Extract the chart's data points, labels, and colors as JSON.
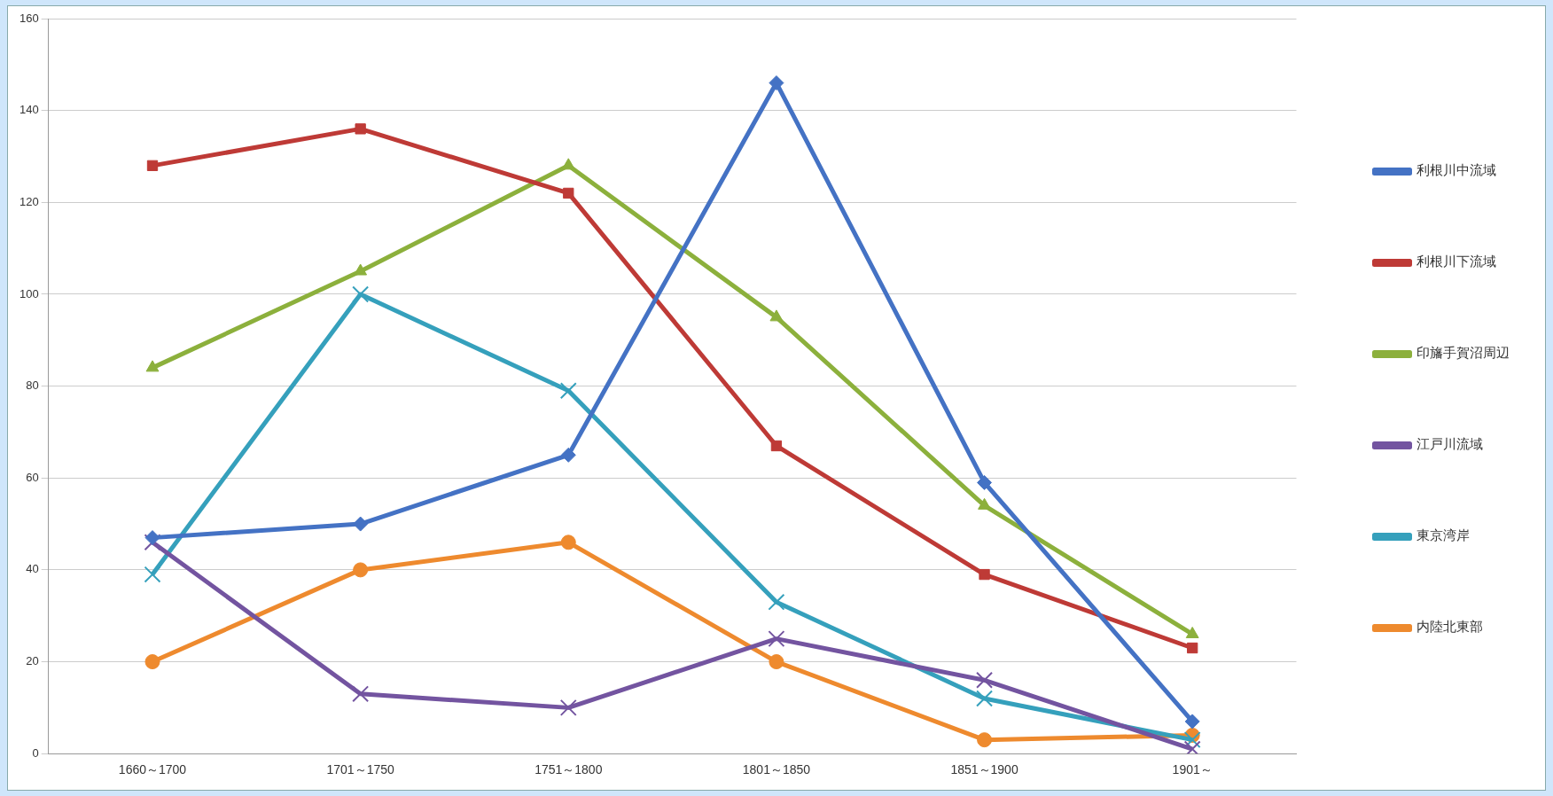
{
  "chart_data": {
    "type": "line",
    "categories": [
      "1660～1700",
      "1701～1750",
      "1751～1800",
      "1801～1850",
      "1851～1900",
      "1901～"
    ],
    "ylim": [
      0,
      160
    ],
    "yticks": [
      0,
      20,
      40,
      60,
      80,
      100,
      120,
      140,
      160
    ],
    "grid": "y",
    "legend": "right",
    "line_style": "solid",
    "series": [
      {
        "name": "利根川中流域",
        "color": "#4472c4",
        "marker": "diamond",
        "values": [
          47,
          50,
          65,
          146,
          59,
          7
        ]
      },
      {
        "name": "利根川下流域",
        "color": "#be3a36",
        "marker": "square",
        "values": [
          128,
          136,
          122,
          67,
          39,
          23
        ]
      },
      {
        "name": "印旛手賀沼周辺",
        "color": "#8cb03c",
        "marker": "triangle",
        "values": [
          84,
          105,
          128,
          95,
          54,
          26
        ]
      },
      {
        "name": "江戸川流域",
        "color": "#7354a0",
        "marker": "cross",
        "values": [
          46,
          13,
          10,
          25,
          16,
          1
        ]
      },
      {
        "name": "東京湾岸",
        "color": "#35a0bc",
        "marker": "cross",
        "values": [
          39,
          100,
          79,
          33,
          12,
          3
        ]
      },
      {
        "name": "内陸北東部",
        "color": "#ee8a2e",
        "marker": "circle",
        "values": [
          20,
          40,
          46,
          20,
          3,
          4
        ]
      }
    ]
  }
}
